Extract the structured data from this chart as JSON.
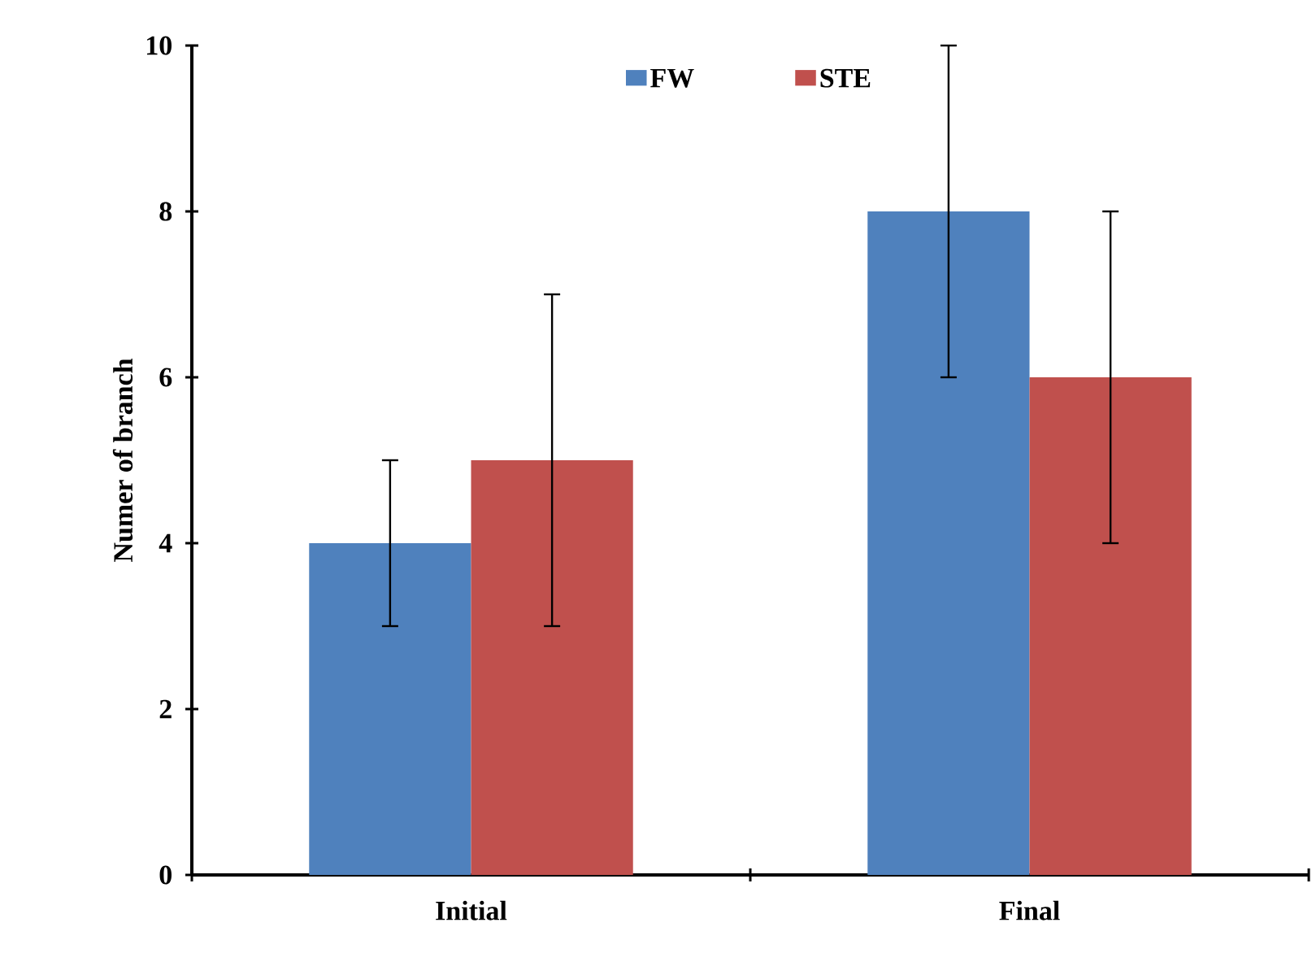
{
  "chart_data": {
    "type": "bar",
    "ylabel": "Numer of branch",
    "categories": [
      "Initial",
      "Final"
    ],
    "series": [
      {
        "name": "FW",
        "color": "#4f81bd",
        "values": [
          4,
          8
        ],
        "errors": [
          1,
          2
        ]
      },
      {
        "name": "STE",
        "color": "#c0504d",
        "values": [
          5,
          6
        ],
        "errors": [
          2,
          2
        ]
      }
    ],
    "ylim": [
      0,
      10
    ],
    "yticks": [
      0,
      2,
      4,
      6,
      8,
      10
    ],
    "grid": false,
    "legend": "top"
  }
}
